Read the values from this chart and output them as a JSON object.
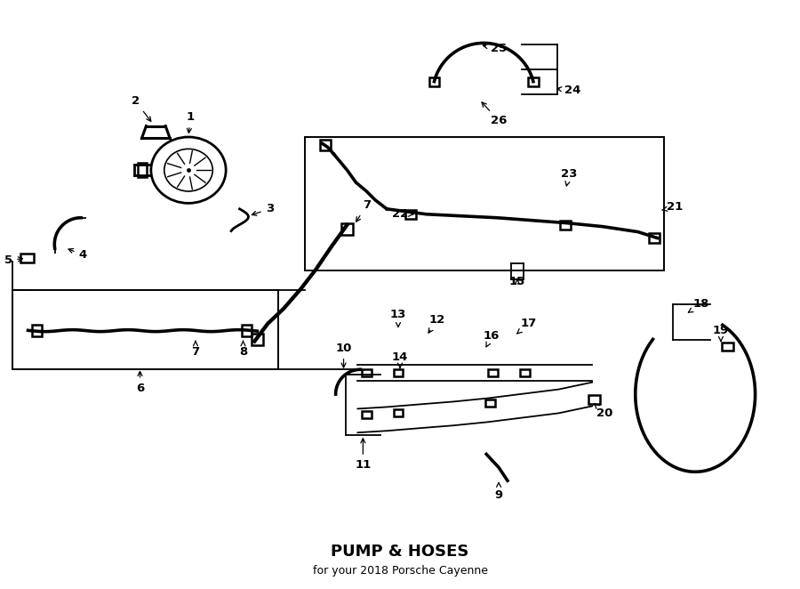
{
  "title": "PUMP & HOSES",
  "subtitle": "for your 2018 Porsche Cayenne",
  "bg_color": "#ffffff",
  "fig_width": 9.0,
  "fig_height": 6.62,
  "dpi": 100
}
